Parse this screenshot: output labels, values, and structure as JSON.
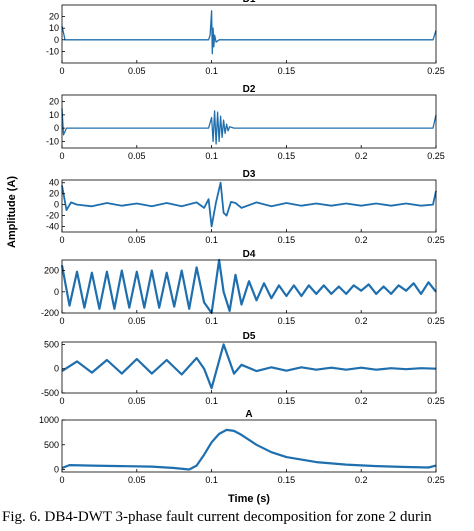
{
  "figure": {
    "ylabel": "Amplitude (A)",
    "xlabel": "Time (s)",
    "caption": "Fig. 6. DB4-DWT 3-phase fault current decomposition for zone 2 durin"
  },
  "chart_data": [
    {
      "type": "line",
      "title": "D1",
      "xlim": [
        0,
        0.25
      ],
      "ylim": [
        -20,
        30
      ],
      "xticks": [
        "0",
        "0.05",
        "0.1",
        "0.15",
        "0.25"
      ],
      "yticks": [
        "20",
        "10",
        "0",
        "-10"
      ],
      "series": [
        {
          "x": [
            0,
            0.002,
            0.098,
            0.099,
            0.1,
            0.1005,
            0.101,
            0.1015,
            0.102,
            0.103,
            0.105,
            0.248,
            0.25
          ],
          "y": [
            12,
            0,
            0,
            4,
            25,
            -12,
            10,
            -6,
            4,
            -2,
            0,
            0,
            8
          ]
        }
      ]
    },
    {
      "type": "line",
      "title": "D2",
      "xlim": [
        0,
        0.25
      ],
      "ylim": [
        -15,
        25
      ],
      "xticks": [
        "0",
        "0.05",
        "0.1",
        "0.15",
        "0.2",
        "0.25"
      ],
      "yticks": [
        "20",
        "10",
        "0",
        "-10"
      ],
      "series": [
        {
          "x": [
            0,
            0.001,
            0.003,
            0.098,
            0.1,
            0.101,
            0.102,
            0.103,
            0.104,
            0.105,
            0.106,
            0.107,
            0.108,
            0.109,
            0.11,
            0.111,
            0.112,
            0.115,
            0.248,
            0.25
          ],
          "y": [
            15,
            -5,
            0,
            0,
            8,
            -10,
            13,
            -12,
            12,
            -10,
            9,
            -7,
            6,
            -4,
            3,
            -2,
            1,
            0,
            0,
            10
          ]
        }
      ]
    },
    {
      "type": "line",
      "title": "D3",
      "xlim": [
        0,
        0.25
      ],
      "ylim": [
        -50,
        45
      ],
      "xticks": [
        "0",
        "0.05",
        "0.1",
        "0.15",
        "0.2",
        "0.25"
      ],
      "yticks": [
        "40",
        "20",
        "0",
        "-20",
        "-40"
      ],
      "series": [
        {
          "x": [
            0,
            0.003,
            0.006,
            0.01,
            0.02,
            0.03,
            0.04,
            0.05,
            0.06,
            0.07,
            0.08,
            0.09,
            0.095,
            0.098,
            0.1,
            0.103,
            0.106,
            0.108,
            0.11,
            0.113,
            0.116,
            0.12,
            0.13,
            0.14,
            0.15,
            0.16,
            0.17,
            0.18,
            0.19,
            0.2,
            0.21,
            0.22,
            0.23,
            0.24,
            0.248,
            0.25
          ],
          "y": [
            35,
            -10,
            4,
            0,
            -3,
            3,
            -2,
            2,
            -3,
            3,
            -3,
            4,
            -6,
            10,
            -40,
            5,
            40,
            -15,
            -20,
            5,
            3,
            -6,
            4,
            -3,
            3,
            -2,
            2,
            -2,
            2,
            -2,
            2,
            -2,
            2,
            -2,
            0,
            25
          ]
        }
      ]
    },
    {
      "type": "line",
      "title": "D4",
      "xlim": [
        0,
        0.25
      ],
      "ylim": [
        -200,
        300
      ],
      "xticks": [
        "0",
        "0.05",
        "0.1",
        "0.15",
        "0.2",
        "0.25"
      ],
      "yticks": [
        "200",
        "0",
        "-200"
      ],
      "series": [
        {
          "x": [
            0,
            0.005,
            0.01,
            0.015,
            0.02,
            0.025,
            0.03,
            0.035,
            0.04,
            0.045,
            0.05,
            0.055,
            0.06,
            0.065,
            0.07,
            0.075,
            0.08,
            0.085,
            0.09,
            0.095,
            0.1,
            0.105,
            0.108,
            0.112,
            0.116,
            0.12,
            0.125,
            0.13,
            0.135,
            0.14,
            0.145,
            0.15,
            0.155,
            0.16,
            0.165,
            0.17,
            0.175,
            0.18,
            0.185,
            0.19,
            0.195,
            0.2,
            0.205,
            0.21,
            0.215,
            0.22,
            0.225,
            0.23,
            0.235,
            0.24,
            0.245,
            0.25
          ],
          "y": [
            250,
            -130,
            190,
            -150,
            180,
            -160,
            190,
            -160,
            200,
            -150,
            190,
            -150,
            200,
            -150,
            180,
            -140,
            200,
            -160,
            230,
            -100,
            -200,
            300,
            0,
            -180,
            160,
            -120,
            100,
            -80,
            80,
            -60,
            60,
            -40,
            60,
            -40,
            60,
            -20,
            60,
            -20,
            50,
            -20,
            60,
            10,
            70,
            -20,
            50,
            -20,
            60,
            10,
            80,
            -20,
            90,
            0
          ]
        }
      ]
    },
    {
      "type": "line",
      "title": "D5",
      "xlim": [
        0,
        0.25
      ],
      "ylim": [
        -500,
        550
      ],
      "xticks": [
        "0",
        "0.05",
        "0.1",
        "0.15",
        "0.2",
        "0.25"
      ],
      "yticks": [
        "500",
        "0",
        "-500"
      ],
      "series": [
        {
          "x": [
            0,
            0.01,
            0.02,
            0.03,
            0.04,
            0.05,
            0.06,
            0.07,
            0.08,
            0.09,
            0.095,
            0.1,
            0.108,
            0.115,
            0.12,
            0.13,
            0.14,
            0.15,
            0.16,
            0.17,
            0.18,
            0.19,
            0.2,
            0.21,
            0.22,
            0.23,
            0.24,
            0.25
          ],
          "y": [
            -50,
            150,
            -80,
            180,
            -100,
            200,
            -100,
            180,
            -120,
            220,
            0,
            -400,
            500,
            -100,
            80,
            -50,
            30,
            -40,
            30,
            -20,
            20,
            -20,
            20,
            -20,
            10,
            -10,
            10,
            0
          ]
        }
      ]
    },
    {
      "type": "line",
      "title": "A",
      "xlim": [
        0,
        0.25
      ],
      "ylim": [
        -50,
        1000
      ],
      "xticks": [
        "0",
        "0.05",
        "0.1",
        "0.15",
        "0.2",
        "0.25"
      ],
      "yticks": [
        "1000",
        "500",
        "0"
      ],
      "series": [
        {
          "x": [
            0,
            0.005,
            0.02,
            0.04,
            0.06,
            0.075,
            0.085,
            0.09,
            0.095,
            0.1,
            0.105,
            0.11,
            0.115,
            0.12,
            0.13,
            0.14,
            0.15,
            0.17,
            0.19,
            0.21,
            0.23,
            0.245,
            0.25
          ],
          "y": [
            30,
            90,
            80,
            70,
            60,
            30,
            0,
            80,
            300,
            550,
            720,
            800,
            780,
            700,
            500,
            350,
            250,
            150,
            100,
            70,
            50,
            40,
            80
          ]
        }
      ]
    }
  ]
}
